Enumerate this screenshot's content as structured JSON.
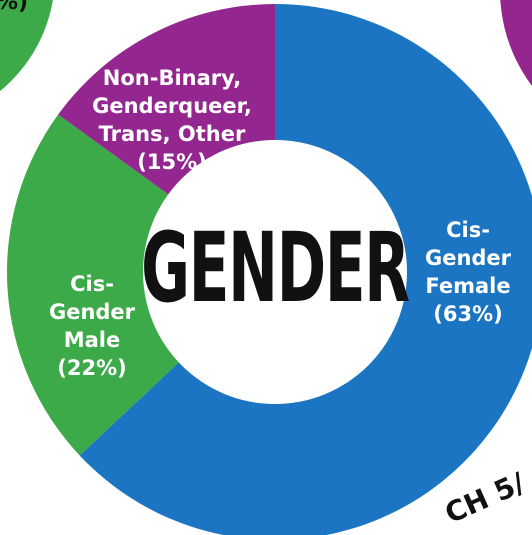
{
  "chart_data": {
    "type": "pie",
    "donut": true,
    "title": "GENDER",
    "categories": [
      "Cis-Gender Female",
      "Cis-Gender Male",
      "Non-Binary, Genderqueer, Trans, Other"
    ],
    "values": [
      63,
      22,
      15
    ],
    "value_labels": [
      "(63%)",
      "(22%)",
      "(15%)"
    ],
    "colors": [
      "#1b75c2",
      "#3caa48",
      "#93278f"
    ],
    "annotations": [
      "%)",
      "CH 5/"
    ]
  }
}
